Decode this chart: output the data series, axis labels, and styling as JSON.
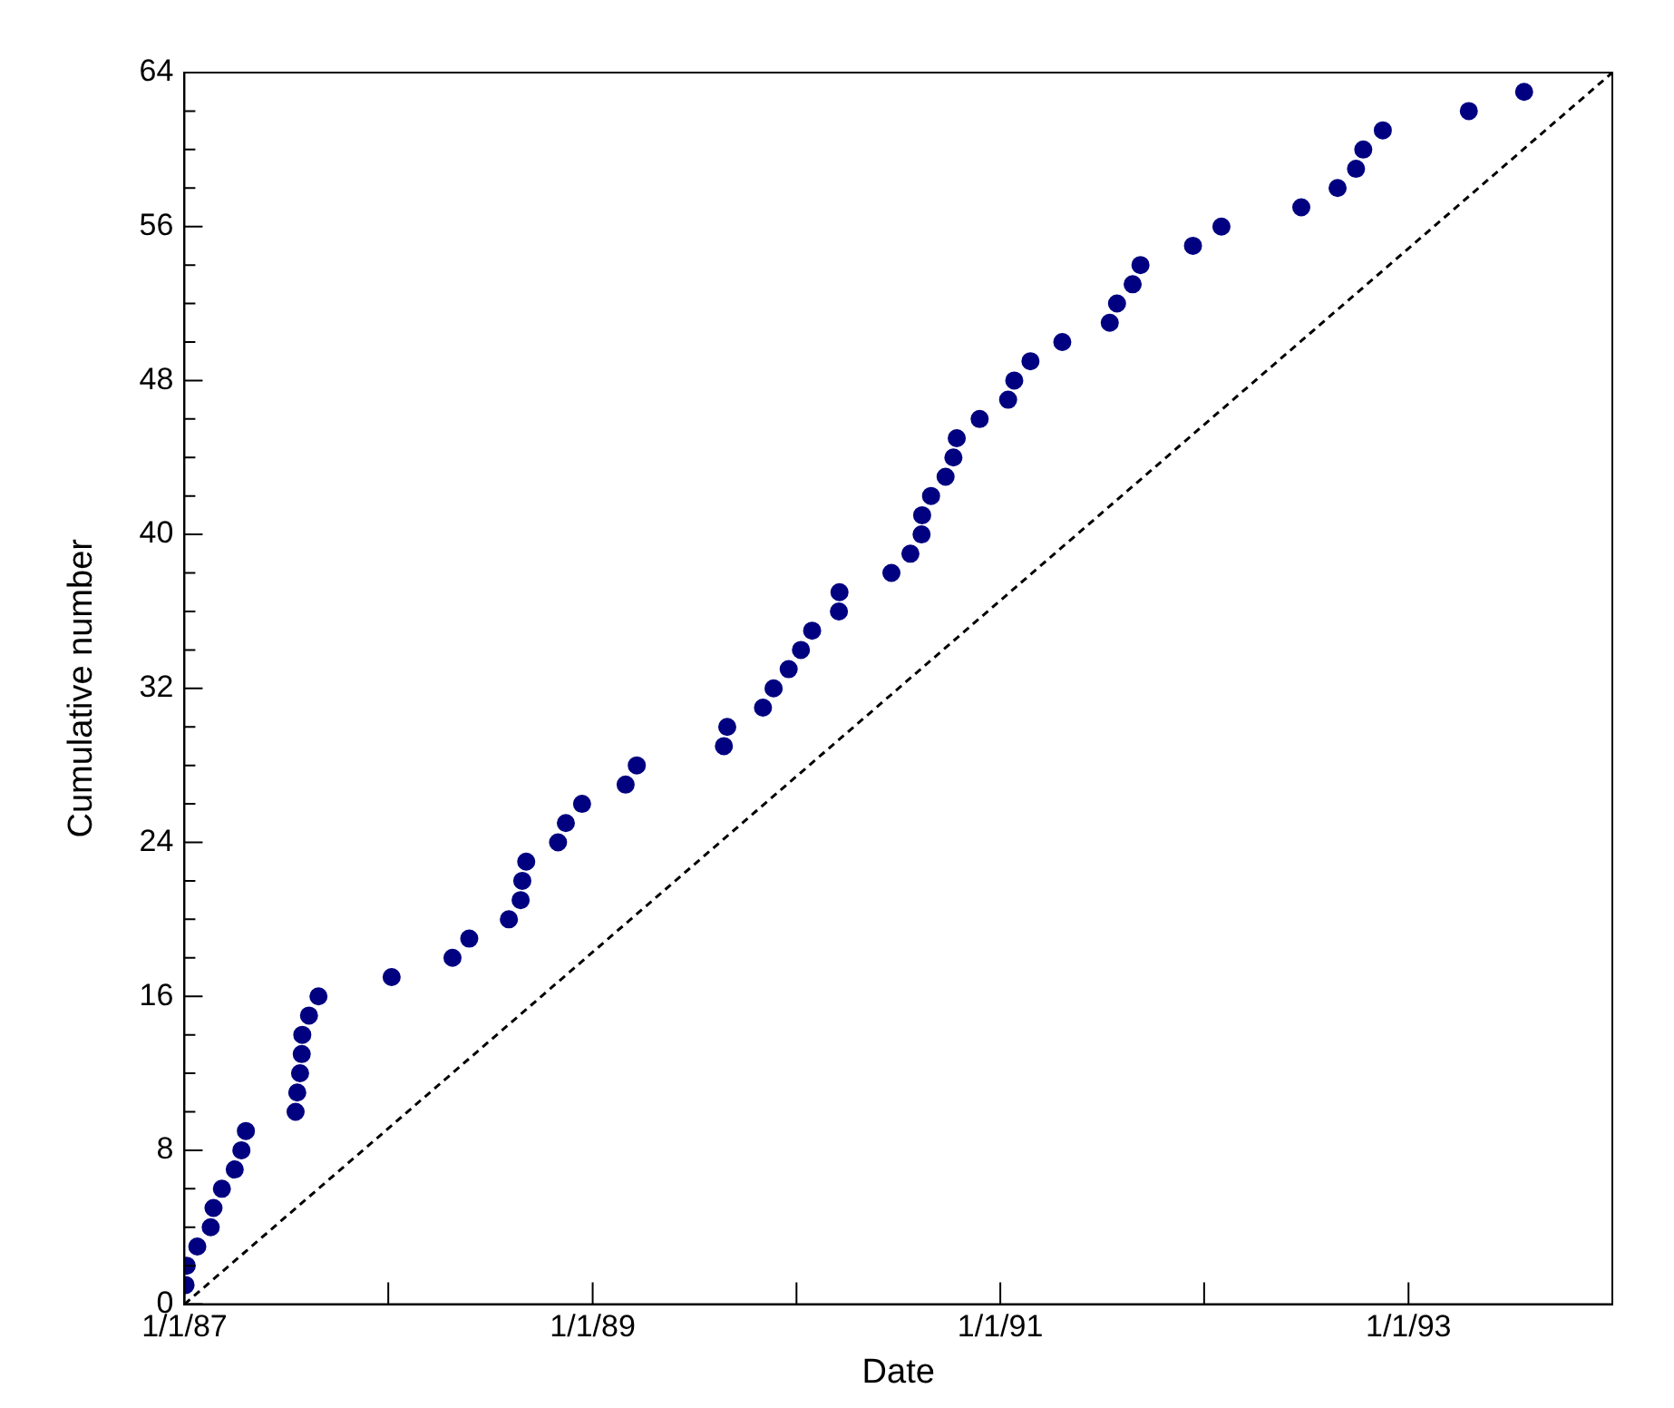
{
  "chart_data": {
    "type": "scatter",
    "xlabel": "Date",
    "ylabel": "Cumulative number",
    "xlim": [
      "1987-01-01",
      "1994-01-01"
    ],
    "xticks": [
      {
        "value": "1987-01-01",
        "label": "1/1/87"
      },
      {
        "value": "1988-01-01",
        "label": null
      },
      {
        "value": "1989-01-01",
        "label": "1/1/89"
      },
      {
        "value": "1990-01-01",
        "label": null
      },
      {
        "value": "1991-01-01",
        "label": "1/1/91"
      },
      {
        "value": "1992-01-01",
        "label": null
      },
      {
        "value": "1993-01-01",
        "label": "1/1/93"
      },
      {
        "value": "1994-01-01",
        "label": null
      }
    ],
    "ylim": [
      0,
      64
    ],
    "yticks": [
      0,
      {
        "value": 2,
        "label": null
      },
      {
        "value": 4,
        "label": null
      },
      {
        "value": 6,
        "label": null
      },
      8,
      {
        "value": 10,
        "label": null
      },
      {
        "value": 12,
        "label": null
      },
      {
        "value": 14,
        "label": null
      },
      16,
      {
        "value": 18,
        "label": null
      },
      {
        "value": 20,
        "label": null
      },
      {
        "value": 22,
        "label": null
      },
      24,
      {
        "value": 26,
        "label": null
      },
      {
        "value": 28,
        "label": null
      },
      {
        "value": 30,
        "label": null
      },
      32,
      {
        "value": 34,
        "label": null
      },
      {
        "value": 36,
        "label": null
      },
      {
        "value": 38,
        "label": null
      },
      40,
      {
        "value": 42,
        "label": null
      },
      {
        "value": 44,
        "label": null
      },
      {
        "value": 46,
        "label": null
      },
      48,
      {
        "value": 50,
        "label": null
      },
      {
        "value": 52,
        "label": null
      },
      {
        "value": 54,
        "label": null
      },
      56,
      {
        "value": 58,
        "label": null
      },
      {
        "value": 60,
        "label": null
      },
      {
        "value": 62,
        "label": null
      },
      64
    ],
    "grid": false,
    "legend": false,
    "marker": "circle",
    "series": [
      {
        "color": "#000080",
        "x": [
          "1987-01-03",
          "1987-01-05",
          "1987-01-24",
          "1987-02-17",
          "1987-02-22",
          "1987-03-09",
          "1987-04-01",
          "1987-04-13",
          "1987-04-21",
          "1987-07-19",
          "1987-07-22",
          "1987-07-27",
          "1987-07-30",
          "1987-07-31",
          "1987-08-12",
          "1987-08-29",
          "1988-01-07",
          "1988-04-25",
          "1988-05-25",
          "1988-08-04",
          "1988-08-25",
          "1988-08-28",
          "1988-09-04",
          "1988-10-31",
          "1988-11-14",
          "1988-12-13",
          "1989-03-01",
          "1989-03-21",
          "1989-08-24",
          "1989-08-30",
          "1989-11-02",
          "1989-11-21",
          "1989-12-18",
          "1990-01-09",
          "1990-01-29",
          "1990-03-18",
          "1990-03-19",
          "1990-06-20",
          "1990-07-24",
          "1990-08-13",
          "1990-08-14",
          "1990-08-30",
          "1990-09-25",
          "1990-10-09",
          "1990-10-15",
          "1990-11-25",
          "1991-01-15",
          "1991-01-26",
          "1991-02-24",
          "1991-04-22",
          "1991-07-16",
          "1991-07-29",
          "1991-08-26",
          "1991-09-09",
          "1991-12-12",
          "1992-02-01",
          "1992-06-23",
          "1992-08-27",
          "1992-09-29",
          "1992-10-12",
          "1992-11-16",
          "1993-04-19",
          "1993-07-27"
        ],
        "values": [
          1,
          2,
          3,
          4,
          5,
          6,
          7,
          8,
          9,
          10,
          11,
          12,
          13,
          14,
          15,
          16,
          17,
          18,
          19,
          20,
          21,
          22,
          23,
          24,
          25,
          26,
          27,
          28,
          29,
          30,
          31,
          32,
          33,
          34,
          35,
          36,
          37,
          38,
          39,
          40,
          41,
          42,
          43,
          44,
          45,
          46,
          47,
          48,
          49,
          50,
          51,
          52,
          53,
          54,
          55,
          56,
          57,
          58,
          59,
          60,
          61,
          62,
          63
        ]
      },
      {
        "type": "line",
        "color": "#000000",
        "line_style": "dashed",
        "marker": "none",
        "x": [
          "1987-01-01",
          "1994-01-01"
        ],
        "values": [
          0,
          64
        ]
      }
    ]
  }
}
